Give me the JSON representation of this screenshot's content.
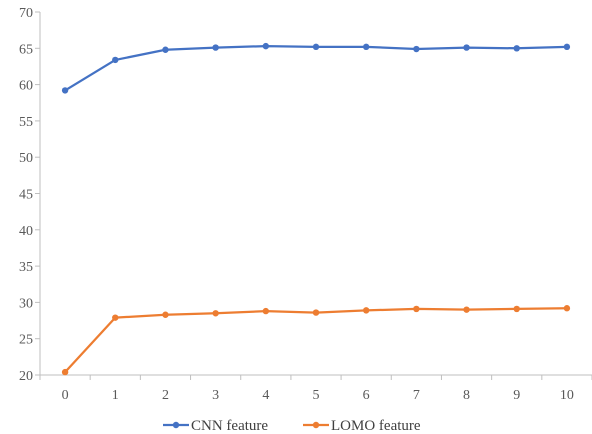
{
  "chart_data": {
    "type": "line",
    "title": "",
    "xlabel": "",
    "ylabel": "",
    "x": [
      0,
      1,
      2,
      3,
      4,
      5,
      6,
      7,
      8,
      9,
      10
    ],
    "xlim": [
      0,
      10
    ],
    "ylim": [
      20,
      70
    ],
    "y_ticks": [
      20,
      25,
      30,
      35,
      40,
      45,
      50,
      55,
      60,
      65,
      70
    ],
    "grid": false,
    "legend_position": "bottom",
    "series": [
      {
        "name": "CNN feature",
        "color": "#4472c4",
        "values": [
          59.2,
          63.4,
          64.8,
          65.1,
          65.3,
          65.2,
          65.2,
          64.9,
          65.1,
          65.0,
          65.2
        ]
      },
      {
        "name": "LOMO feature",
        "color": "#ed7d31",
        "values": [
          20.4,
          27.9,
          28.3,
          28.5,
          28.8,
          28.6,
          28.9,
          29.1,
          29.0,
          29.1,
          29.2
        ]
      }
    ]
  }
}
